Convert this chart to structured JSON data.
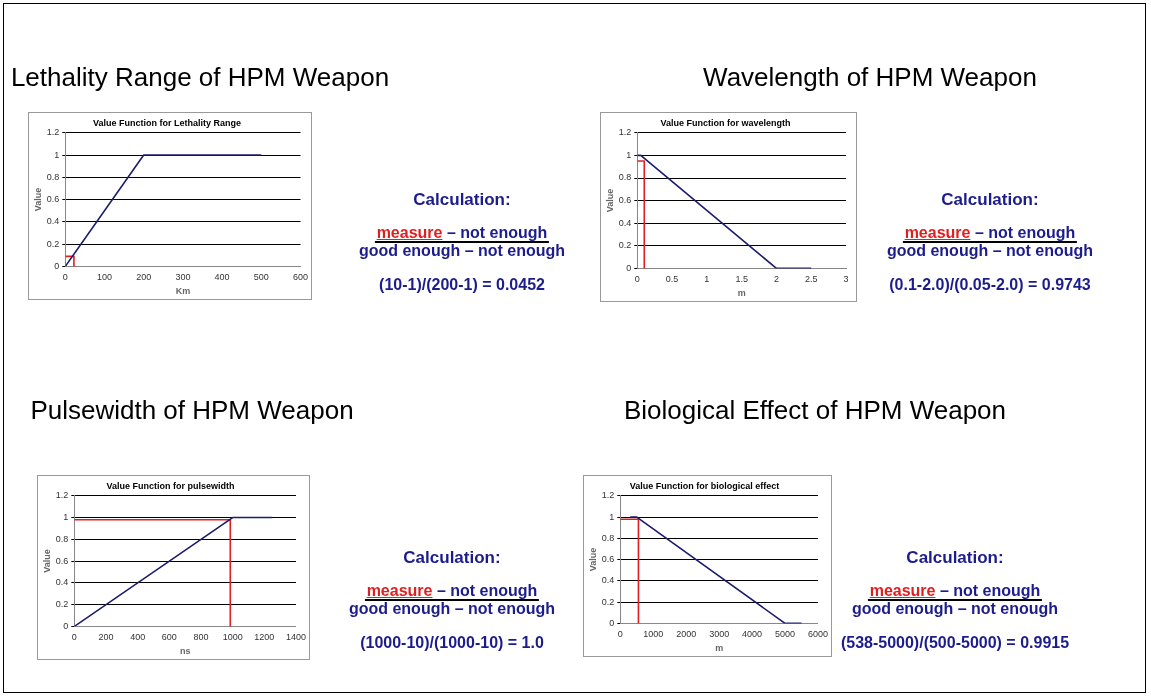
{
  "chart_data": [
    {
      "type": "line",
      "title": "Lethality Range of HPM Weapon",
      "subtitle": "Value Function for Lethality Range",
      "xlabel": "Km",
      "ylabel": "Value",
      "xlim": [
        0,
        600
      ],
      "xticks": [
        0,
        100,
        200,
        300,
        400,
        500,
        600
      ],
      "ylim": [
        0,
        1.2
      ],
      "yticks": [
        0,
        0.2,
        0.4,
        0.6,
        0.8,
        1,
        1.2
      ],
      "grid": "y",
      "legend": false,
      "marker": "none",
      "series": [
        {
          "x": [
            0,
            200,
            500
          ],
          "color": "#1c1c6e",
          "values": [
            0,
            1,
            1
          ]
        },
        {
          "x": [
            0,
            22,
            22
          ],
          "color": "#e02020",
          "values": [
            0.09,
            0.09,
            0
          ]
        }
      ],
      "annotations": [
        "Calculation:",
        "measure – not enough",
        "good enough – not enough",
        "(10-1)/(200-1) = 0.0452"
      ]
    },
    {
      "type": "line",
      "title": "Wavelength of HPM Weapon",
      "subtitle": "Value Function for wavelength",
      "xlabel": "m",
      "ylabel": "Value",
      "xlim": [
        0,
        3
      ],
      "xticks": [
        0,
        0.5,
        1,
        1.5,
        2,
        2.5,
        3
      ],
      "ylim": [
        0,
        1.2
      ],
      "yticks": [
        0,
        0.2,
        0.4,
        0.6,
        0.8,
        1,
        1.2
      ],
      "grid": "y",
      "legend": false,
      "marker": "none",
      "series": [
        {
          "x": [
            0,
            0.05,
            2,
            2.5
          ],
          "color": "#1c1c6e",
          "values": [
            1,
            1,
            0,
            0
          ]
        },
        {
          "x": [
            0,
            0.1,
            0.1
          ],
          "color": "#e02020",
          "values": [
            0.95,
            0.95,
            0
          ]
        }
      ],
      "annotations": [
        "Calculation:",
        "measure – not enough",
        "good enough – not enough",
        "(0.1-2.0)/(0.05-2.0) = 0.9743"
      ]
    },
    {
      "type": "line",
      "title": "Pulsewidth of HPM Weapon",
      "subtitle": "Value Function for pulsewidth",
      "xlabel": "ns",
      "ylabel": "Value",
      "xlim": [
        0,
        1400
      ],
      "xticks": [
        0,
        200,
        400,
        600,
        800,
        1000,
        1200,
        1400
      ],
      "ylim": [
        0,
        1.2
      ],
      "yticks": [
        0,
        0.2,
        0.4,
        0.6,
        0.8,
        1,
        1.2
      ],
      "grid": "y",
      "legend": false,
      "marker": "none",
      "series": [
        {
          "x": [
            0,
            1000,
            1250
          ],
          "color": "#1c1c6e",
          "values": [
            0,
            1,
            1
          ]
        },
        {
          "x": [
            0,
            985,
            985
          ],
          "color": "#e02020",
          "values": [
            0.98,
            0.98,
            0
          ]
        }
      ],
      "annotations": [
        "Calculation:",
        "measure – not enough",
        "good enough – not enough",
        "(1000-10)/(1000-10) = 1.0"
      ]
    },
    {
      "type": "line",
      "title": "Biological Effect of HPM Weapon",
      "subtitle": "Value Function for biological effect",
      "xlabel": "m",
      "ylabel": "Value",
      "xlim": [
        0,
        6000
      ],
      "xticks": [
        0,
        1000,
        2000,
        3000,
        4000,
        5000,
        6000
      ],
      "ylim": [
        0,
        1.2
      ],
      "yticks": [
        0,
        0.2,
        0.4,
        0.6,
        0.8,
        1,
        1.2
      ],
      "grid": "y",
      "legend": false,
      "marker": "none",
      "series": [
        {
          "x": [
            300,
            500,
            5000,
            5500
          ],
          "color": "#1c1c6e",
          "values": [
            1,
            1,
            0,
            0
          ]
        },
        {
          "x": [
            0,
            550,
            550
          ],
          "color": "#e02020",
          "values": [
            0.98,
            0.98,
            0
          ]
        }
      ],
      "annotations": [
        "Calculation:",
        "measure – not enough",
        "good enough – not enough",
        "(538-5000)/(500-5000) = 0.9915"
      ]
    }
  ]
}
